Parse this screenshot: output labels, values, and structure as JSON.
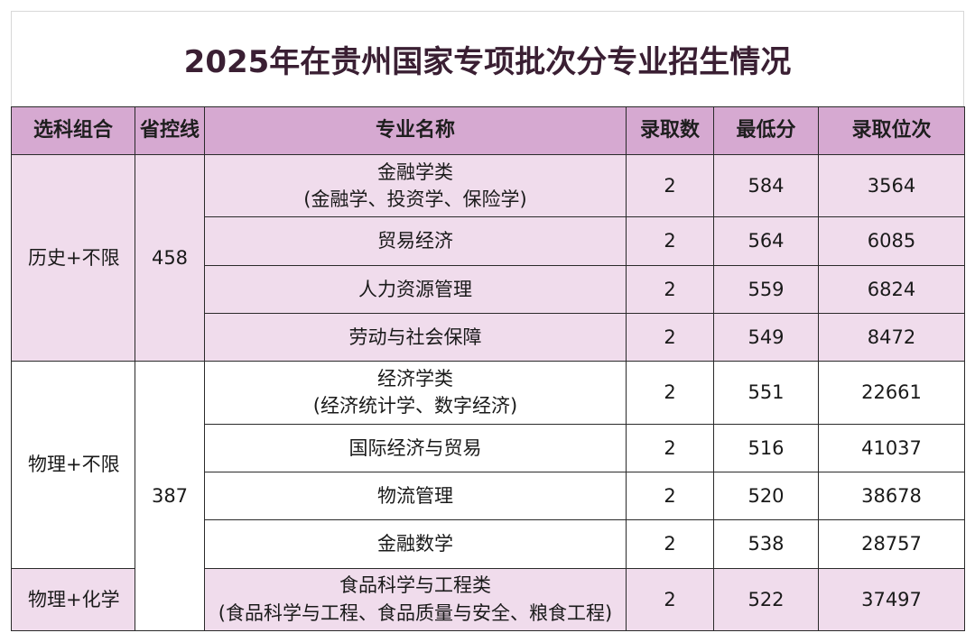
{
  "title": "2025年在贵州国家专项批次分专业招生情况",
  "headers": [
    "选科组合",
    "省控线",
    "专业名称",
    "录取数",
    "最低分",
    "录取位次"
  ],
  "groups": [
    {
      "subject": "历史+不限",
      "control_line": "458",
      "rows": [
        {
          "major": "金融学类",
          "major_detail": "(金融学、投资学、保险学)",
          "admitted": "2",
          "min_score": "584",
          "rank": "3564"
        },
        {
          "major": "贸易经济",
          "admitted": "2",
          "min_score": "564",
          "rank": "6085"
        },
        {
          "major": "人力资源管理",
          "admitted": "2",
          "min_score": "559",
          "rank": "6824"
        },
        {
          "major": "劳动与社会保障",
          "admitted": "2",
          "min_score": "549",
          "rank": "8472"
        }
      ]
    },
    {
      "subject": "物理+不限",
      "control_line": "387",
      "rows": [
        {
          "major": "经济学类",
          "major_detail": "(经济统计学、数字经济)",
          "admitted": "2",
          "min_score": "551",
          "rank": "22661"
        },
        {
          "major": "国际经济与贸易",
          "admitted": "2",
          "min_score": "516",
          "rank": "41037"
        },
        {
          "major": "物流管理",
          "admitted": "2",
          "min_score": "520",
          "rank": "38678"
        },
        {
          "major": "金融数学",
          "admitted": "2",
          "min_score": "538",
          "rank": "28757"
        }
      ]
    },
    {
      "subject": "物理+化学",
      "rows": [
        {
          "major": "食品科学与工程类",
          "major_detail": "(食品科学与工程、食品质量与安全、粮食工程)",
          "admitted": "2",
          "min_score": "522",
          "rank": "37497"
        }
      ]
    }
  ],
  "colors": {
    "header_bg": "#d6a9d1",
    "row_tint": "#f0dcec",
    "title_color": "#3a1f33"
  }
}
